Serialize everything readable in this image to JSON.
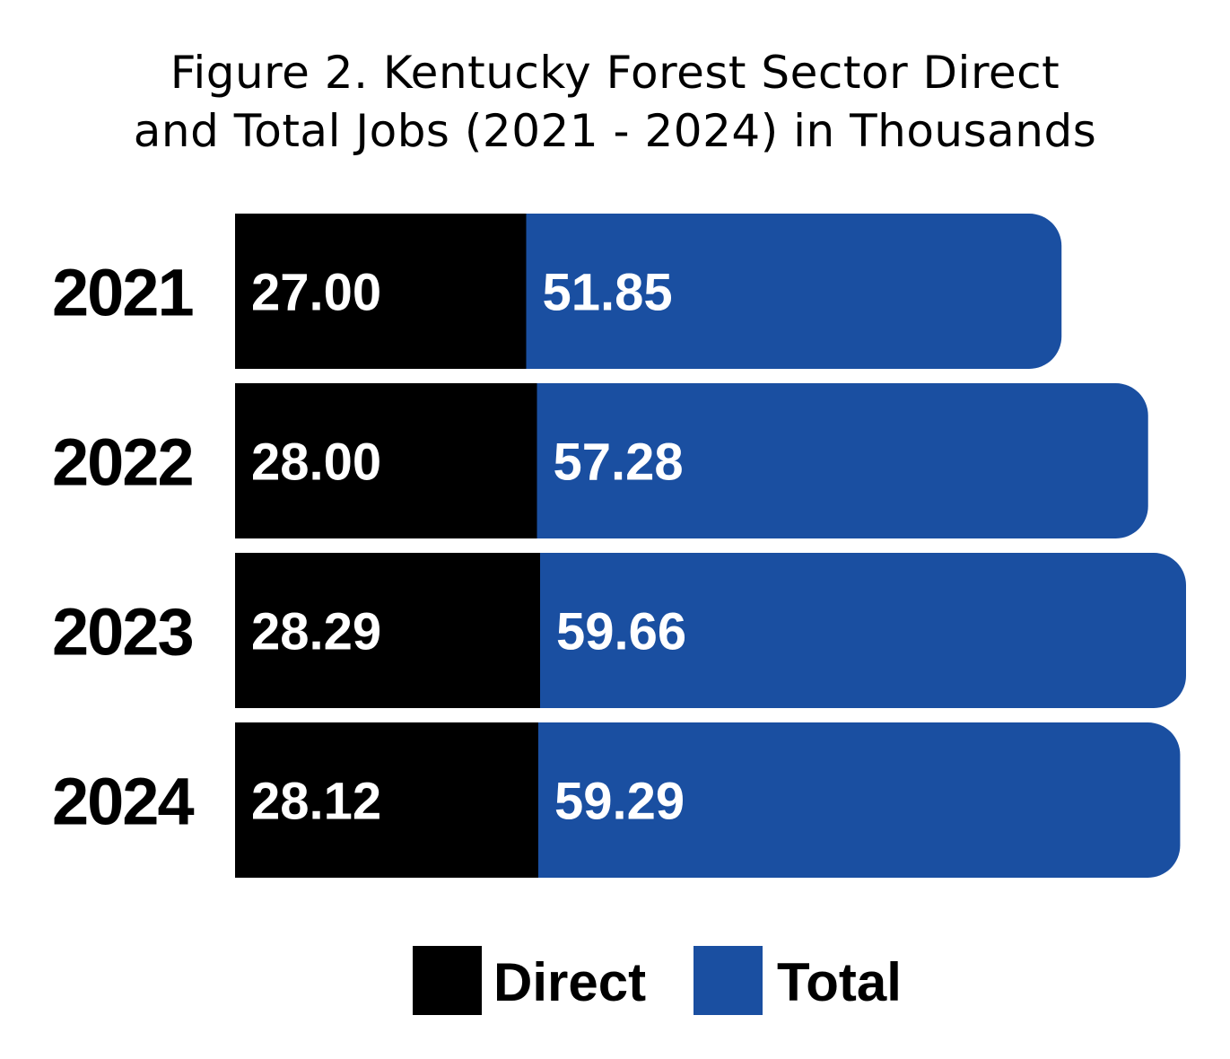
{
  "chart_data": {
    "type": "bar",
    "orientation": "horizontal",
    "title_line1": "Figure 2. Kentucky Forest Sector Direct",
    "title_line2": "and Total Jobs (2021 - 2024) in Thousands",
    "categories": [
      "2021",
      "2022",
      "2023",
      "2024"
    ],
    "series": [
      {
        "name": "Direct",
        "values": [
          27.0,
          28.0,
          28.29,
          28.12
        ],
        "labels": [
          "27.00",
          "28.00",
          "28.29",
          "28.12"
        ],
        "color": "#000000"
      },
      {
        "name": "Total",
        "values": [
          51.85,
          57.28,
          59.66,
          59.29
        ],
        "labels": [
          "51.85",
          "57.28",
          "59.66",
          "59.29"
        ],
        "color": "#1a4fa1"
      }
    ],
    "xlim": [
      0,
      59.66
    ],
    "grid": false,
    "legend_position": "bottom"
  }
}
